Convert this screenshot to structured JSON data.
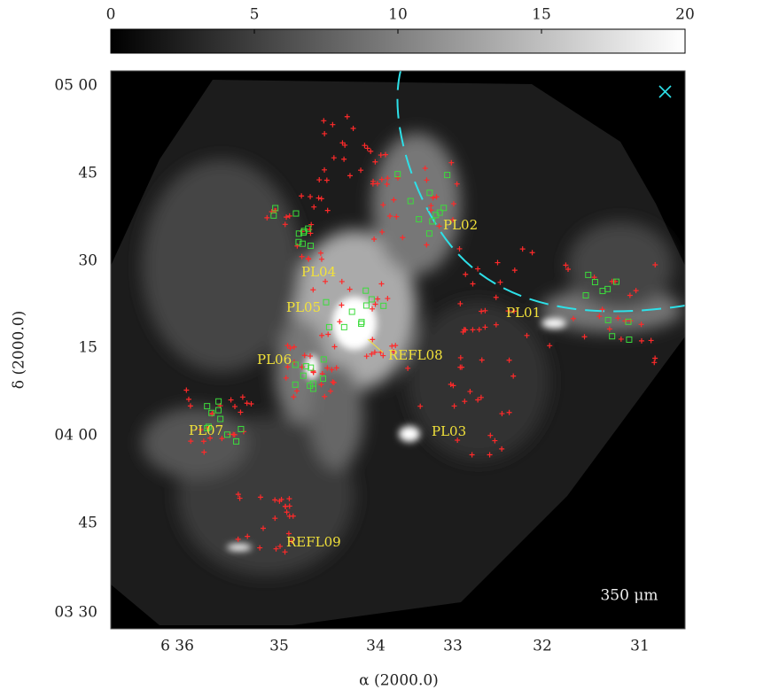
{
  "colorbar": {
    "lim": [
      0,
      20
    ],
    "ticks": [
      0,
      5,
      10,
      15,
      20
    ]
  },
  "x_axis": {
    "label": "α (2000.0)",
    "ticks": [
      "6 36",
      "35",
      "34",
      "33",
      "32",
      "31"
    ]
  },
  "y_axis": {
    "label": "δ (2000.0)",
    "ticks": [
      "05 00",
      "45",
      "30",
      "15",
      "04 00",
      "45",
      "03 30"
    ]
  },
  "annotations": [
    "PL01",
    "PL02",
    "PL03",
    "PL04",
    "PL05",
    "PL06",
    "PL07",
    "REFL08",
    "REFL09"
  ],
  "band": "350 μm"
}
